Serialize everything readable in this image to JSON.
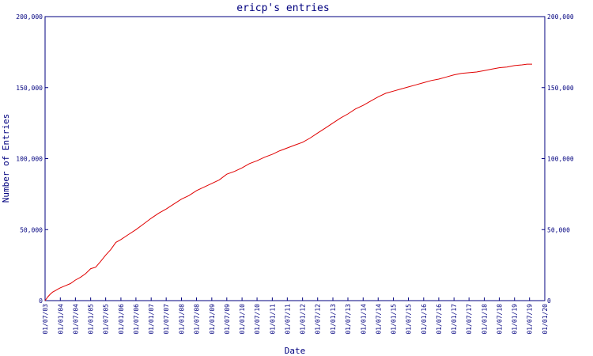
{
  "chart_data": {
    "type": "line",
    "title": "ericp's entries",
    "xlabel": "Date",
    "ylabel": "Number of Entries",
    "x_tick_labels": [
      "01/07/03",
      "01/01/04",
      "01/07/04",
      "01/01/05",
      "01/07/05",
      "01/01/06",
      "01/07/06",
      "01/01/07",
      "01/07/07",
      "01/01/08",
      "01/07/08",
      "01/01/09",
      "01/07/09",
      "01/01/10",
      "01/07/10",
      "01/01/11",
      "01/07/11",
      "01/01/12",
      "01/07/12",
      "01/01/13",
      "01/07/13",
      "01/01/14",
      "01/07/14",
      "01/01/15",
      "01/07/15",
      "01/01/16",
      "01/07/16",
      "01/01/17",
      "01/07/17",
      "01/01/18",
      "01/07/18",
      "01/01/19",
      "01/07/19",
      "01/01/20"
    ],
    "y_tick_labels": [
      "0",
      "50,000",
      "100,000",
      "150,000",
      "200,000"
    ],
    "y_ticks": [
      0,
      50000,
      100000,
      150000,
      200000
    ],
    "ylim": [
      0,
      200000
    ],
    "grid": false,
    "colors": {
      "axis": "#00007f",
      "series": "#e00000"
    },
    "series": [
      {
        "x": [
          "2003-07-01",
          "2003-08-01",
          "2003-09-01",
          "2003-10-01",
          "2003-11-01",
          "2003-12-01",
          "2004-01-01",
          "2004-03-01",
          "2004-05-01",
          "2004-07-01",
          "2004-09-01",
          "2004-11-01",
          "2005-01-01",
          "2005-03-01",
          "2005-05-01",
          "2005-07-01",
          "2005-09-01",
          "2005-11-01",
          "2006-01-01",
          "2006-04-01",
          "2006-07-01",
          "2006-10-01",
          "2007-01-01",
          "2007-04-01",
          "2007-07-01",
          "2007-10-01",
          "2008-01-01",
          "2008-04-01",
          "2008-07-01",
          "2008-10-01",
          "2009-01-01",
          "2009-04-01",
          "2009-07-01",
          "2009-10-01",
          "2010-01-01",
          "2010-04-01",
          "2010-07-01",
          "2010-10-01",
          "2011-01-01",
          "2011-04-01",
          "2011-07-01",
          "2011-10-01",
          "2012-01-01",
          "2012-04-01",
          "2012-07-01",
          "2012-10-01",
          "2013-01-01",
          "2013-04-01",
          "2013-07-01",
          "2013-10-01",
          "2014-01-01",
          "2014-04-01",
          "2014-07-01",
          "2014-10-01",
          "2015-01-01",
          "2015-04-01",
          "2015-07-01",
          "2015-10-01",
          "2016-01-01",
          "2016-04-01",
          "2016-07-01",
          "2016-10-01",
          "2017-01-01",
          "2017-04-01",
          "2017-07-01",
          "2017-10-01",
          "2018-01-01",
          "2018-04-01",
          "2018-07-01",
          "2018-10-01",
          "2019-01-01",
          "2019-04-01",
          "2019-06-01",
          "2019-08-01"
        ],
        "values": [
          0,
          2500,
          4500,
          6000,
          7000,
          8000,
          9000,
          10500,
          12000,
          14500,
          16500,
          19000,
          22500,
          23500,
          27500,
          32000,
          36000,
          41000,
          43000,
          46500,
          50000,
          54000,
          58000,
          61500,
          64500,
          68000,
          71500,
          74000,
          77500,
          80000,
          82500,
          85000,
          89000,
          91000,
          93500,
          96500,
          98500,
          101000,
          103000,
          105500,
          107500,
          109500,
          111500,
          114500,
          118000,
          121500,
          125000,
          128500,
          131500,
          135000,
          137500,
          140500,
          143500,
          146000,
          147500,
          149000,
          150500,
          152000,
          153500,
          155000,
          156000,
          157500,
          159000,
          160000,
          160500,
          161000,
          162000,
          163000,
          164000,
          164500,
          165500,
          166000,
          166500,
          166500
        ]
      }
    ]
  }
}
